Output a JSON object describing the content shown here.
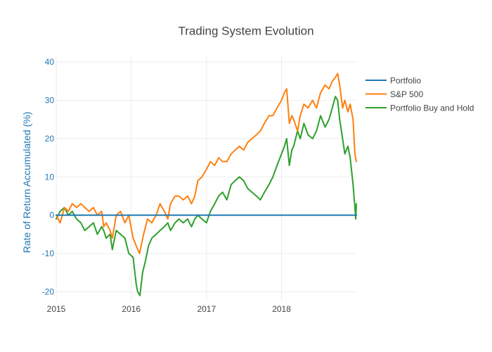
{
  "chart_data": {
    "type": "line",
    "title": "Trading System Evolution",
    "xlabel": "",
    "ylabel": "Rate of Return Accumulated (%)",
    "x_ticks": [
      "2015",
      "2016",
      "2017",
      "2018"
    ],
    "y_ticks": [
      -20,
      -10,
      0,
      10,
      20,
      30,
      40
    ],
    "xlim": [
      "2015-01-01",
      "2018-12-31"
    ],
    "ylim": [
      -22.5,
      41.5
    ],
    "grid": true,
    "legend": "top-right",
    "series": [
      {
        "name": "Portfolio",
        "color": "#1f77b4",
        "x": [
          "2015-01-01",
          "2018-12-31"
        ],
        "y": [
          0,
          0
        ]
      },
      {
        "name": "S&P 500",
        "color": "#ff7f0e",
        "x": [
          "2015-01-01",
          "2015-01-20",
          "2015-02-10",
          "2015-03-01",
          "2015-03-20",
          "2015-04-10",
          "2015-05-01",
          "2015-05-20",
          "2015-06-10",
          "2015-07-01",
          "2015-07-20",
          "2015-08-10",
          "2015-08-20",
          "2015-09-01",
          "2015-09-20",
          "2015-10-01",
          "2015-10-20",
          "2015-11-10",
          "2015-12-01",
          "2015-12-20",
          "2016-01-10",
          "2016-01-25",
          "2016-02-10",
          "2016-03-01",
          "2016-03-20",
          "2016-04-10",
          "2016-05-01",
          "2016-05-20",
          "2016-06-10",
          "2016-06-27",
          "2016-07-10",
          "2016-08-01",
          "2016-08-20",
          "2016-09-10",
          "2016-10-01",
          "2016-10-20",
          "2016-11-05",
          "2016-11-20",
          "2016-12-10",
          "2017-01-01",
          "2017-01-20",
          "2017-02-10",
          "2017-03-01",
          "2017-03-20",
          "2017-04-10",
          "2017-05-01",
          "2017-05-20",
          "2017-06-10",
          "2017-07-01",
          "2017-07-20",
          "2017-08-10",
          "2017-09-01",
          "2017-09-20",
          "2017-10-10",
          "2017-11-01",
          "2017-11-20",
          "2017-12-10",
          "2018-01-01",
          "2018-01-15",
          "2018-01-26",
          "2018-02-08",
          "2018-02-20",
          "2018-03-01",
          "2018-03-20",
          "2018-04-02",
          "2018-04-20",
          "2018-05-10",
          "2018-06-01",
          "2018-06-20",
          "2018-07-10",
          "2018-08-01",
          "2018-08-20",
          "2018-09-05",
          "2018-09-20",
          "2018-10-01",
          "2018-10-11",
          "2018-10-25",
          "2018-11-05",
          "2018-11-20",
          "2018-12-01",
          "2018-12-15",
          "2018-12-24",
          "2018-12-31"
        ],
        "y": [
          0,
          -2,
          2,
          1,
          3,
          2,
          3,
          2,
          1,
          2,
          0,
          1,
          -3,
          -2,
          -4,
          -6,
          0,
          1,
          -2,
          0,
          -6,
          -8,
          -10,
          -5,
          -1,
          -2,
          0,
          3,
          1,
          -1,
          3,
          5,
          5,
          4,
          5,
          3,
          5,
          9,
          10,
          12,
          14,
          13,
          15,
          14,
          14,
          16,
          17,
          18,
          17,
          19,
          20,
          21,
          22,
          24,
          26,
          26,
          28,
          30,
          32,
          33,
          24,
          26,
          25,
          22,
          26,
          29,
          28,
          30,
          28,
          32,
          34,
          33,
          35,
          36,
          37,
          34,
          28,
          30,
          27,
          29,
          25,
          16,
          14
        ]
      },
      {
        "name": "Portfolio Buy and Hold",
        "color": "#2ca02c",
        "x": [
          "2015-01-01",
          "2015-01-20",
          "2015-02-10",
          "2015-03-01",
          "2015-03-20",
          "2015-04-10",
          "2015-05-01",
          "2015-05-20",
          "2015-06-10",
          "2015-07-01",
          "2015-07-20",
          "2015-08-10",
          "2015-08-20",
          "2015-09-01",
          "2015-09-20",
          "2015-10-01",
          "2015-10-20",
          "2015-11-10",
          "2015-12-01",
          "2015-12-20",
          "2016-01-10",
          "2016-01-25",
          "2016-02-01",
          "2016-02-12",
          "2016-02-25",
          "2016-03-10",
          "2016-03-25",
          "2016-04-10",
          "2016-05-01",
          "2016-05-20",
          "2016-06-10",
          "2016-06-27",
          "2016-07-10",
          "2016-08-01",
          "2016-08-20",
          "2016-09-10",
          "2016-10-01",
          "2016-10-20",
          "2016-11-05",
          "2016-11-20",
          "2016-12-10",
          "2017-01-01",
          "2017-01-20",
          "2017-02-10",
          "2017-03-01",
          "2017-03-20",
          "2017-04-10",
          "2017-05-01",
          "2017-05-20",
          "2017-06-10",
          "2017-07-01",
          "2017-07-20",
          "2017-08-10",
          "2017-09-01",
          "2017-09-20",
          "2017-10-10",
          "2017-11-01",
          "2017-11-20",
          "2017-12-10",
          "2018-01-01",
          "2018-01-15",
          "2018-01-26",
          "2018-02-08",
          "2018-02-20",
          "2018-03-01",
          "2018-03-20",
          "2018-04-02",
          "2018-04-20",
          "2018-05-10",
          "2018-06-01",
          "2018-06-20",
          "2018-07-10",
          "2018-08-01",
          "2018-08-20",
          "2018-09-05",
          "2018-09-20",
          "2018-10-01",
          "2018-10-11",
          "2018-10-25",
          "2018-11-05",
          "2018-11-20",
          "2018-12-01",
          "2018-12-15",
          "2018-12-24",
          "2018-12-28",
          "2018-12-31"
        ],
        "y": [
          -1,
          1,
          2,
          0,
          1,
          -1,
          -2,
          -4,
          -3,
          -2,
          -5,
          -3,
          -4,
          -6,
          -5,
          -9,
          -4,
          -5,
          -6,
          -10,
          -11,
          -18,
          -20,
          -21,
          -15,
          -12,
          -8,
          -6,
          -5,
          -4,
          -3,
          -2,
          -4,
          -2,
          -1,
          -2,
          -1,
          -3,
          -1,
          0,
          -1,
          -2,
          1,
          3,
          5,
          6,
          4,
          8,
          9,
          10,
          9,
          7,
          6,
          5,
          4,
          6,
          8,
          10,
          13,
          16,
          18,
          20,
          13,
          17,
          18,
          22,
          20,
          24,
          21,
          20,
          22,
          26,
          23,
          25,
          28,
          31,
          30,
          25,
          20,
          16,
          18,
          15,
          8,
          2,
          -1,
          3
        ]
      }
    ]
  }
}
